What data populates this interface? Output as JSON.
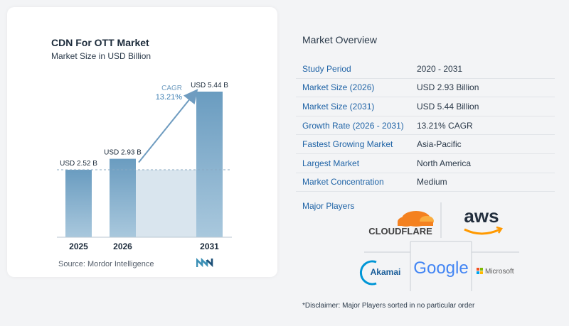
{
  "chart": {
    "title": "CDN For OTT Market",
    "subtitle": "Market Size in USD Billion",
    "cagr_label": "CAGR",
    "cagr_value": "13.21%",
    "source": "Source:  Mordor Intelligence"
  },
  "chart_data": {
    "type": "bar",
    "categories": [
      "2025",
      "2026",
      "2031"
    ],
    "values": [
      2.52,
      2.93,
      5.44
    ],
    "data_labels": [
      "USD 2.52 B",
      "USD 2.93 B",
      "USD 5.44 B"
    ],
    "title": "CDN For OTT Market",
    "subtitle": "Market Size in USD Billion",
    "xlabel": "",
    "ylabel": "",
    "annotation": "CAGR 13.21%",
    "grid": false,
    "colors": {
      "bar_top": "#6b9dc1",
      "bar_bottom": "#a7c6dc",
      "arrow": "#6f9cc0",
      "baseline": "#8aa9c2",
      "shade": "#d9e5ee"
    }
  },
  "overview": {
    "title": "Market Overview",
    "rows": [
      {
        "label": "Study Period",
        "value": "2020 - 2031"
      },
      {
        "label": "Market Size (2026)",
        "value": "USD 2.93 Billion"
      },
      {
        "label": "Market Size (2031)",
        "value": "USD 5.44 Billion"
      },
      {
        "label": "Growth Rate (2026 - 2031)",
        "value": "13.21% CAGR"
      },
      {
        "label": "Fastest Growing Market",
        "value": "Asia-Pacific"
      },
      {
        "label": "Largest Market",
        "value": "North America"
      },
      {
        "label": "Market Concentration",
        "value": "Medium"
      }
    ],
    "players_label": "Major Players",
    "players": [
      {
        "name": "CLOUDFLARE",
        "icon": "cloudflare-logo"
      },
      {
        "name": "aws",
        "icon": "aws-logo"
      },
      {
        "name": "Akamai",
        "icon": "akamai-logo"
      },
      {
        "name": "Google",
        "icon": "google-logo"
      },
      {
        "name": "Microsoft",
        "icon": "microsoft-logo"
      }
    ],
    "disclaimer": "*Disclaimer: Major Players sorted in no particular order"
  }
}
